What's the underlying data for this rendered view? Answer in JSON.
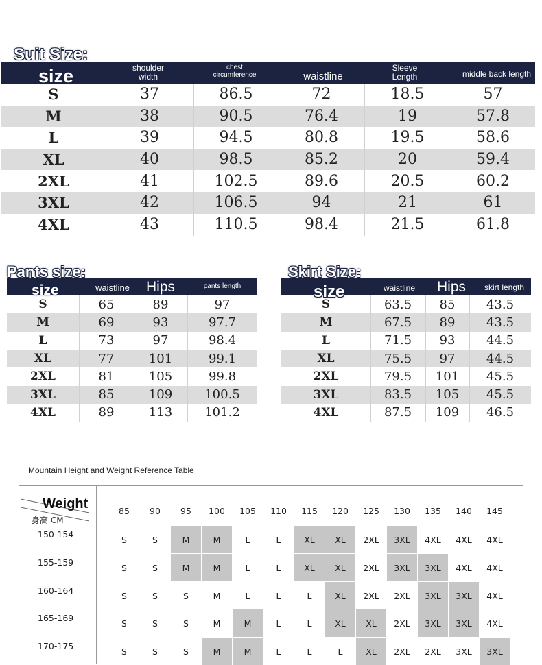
{
  "suit": {
    "title": "Suit Size:",
    "size_label": "size",
    "headers": [
      "shoulder width",
      "chest circumference",
      "waistline",
      "Sleeve Length",
      "middle back length"
    ],
    "rows": [
      [
        "S",
        "37",
        "86.5",
        "72",
        "18.5",
        "57"
      ],
      [
        "M",
        "38",
        "90.5",
        "76.4",
        "19",
        "57.8"
      ],
      [
        "L",
        "39",
        "94.5",
        "80.8",
        "19.5",
        "58.6"
      ],
      [
        "XL",
        "40",
        "98.5",
        "85.2",
        "20",
        "59.4"
      ],
      [
        "2XL",
        "41",
        "102.5",
        "89.6",
        "20.5",
        "60.2"
      ],
      [
        "3XL",
        "42",
        "106.5",
        "94",
        "21",
        "61"
      ],
      [
        "4XL",
        "43",
        "110.5",
        "98.4",
        "21.5",
        "61.8"
      ]
    ]
  },
  "pants": {
    "title": "Pants size:",
    "size_label": "size",
    "headers": [
      "waistline",
      "Hips",
      "pants length"
    ],
    "rows": [
      [
        "S",
        "65",
        "89",
        "97"
      ],
      [
        "M",
        "69",
        "93",
        "97.7"
      ],
      [
        "L",
        "73",
        "97",
        "98.4"
      ],
      [
        "XL",
        "77",
        "101",
        "99.1"
      ],
      [
        "2XL",
        "81",
        "105",
        "99.8"
      ],
      [
        "3XL",
        "85",
        "109",
        "100.5"
      ],
      [
        "4XL",
        "89",
        "113",
        "101.2"
      ]
    ]
  },
  "skirt": {
    "title": "Skirt Size:",
    "size_label": "size",
    "headers": [
      "waistline",
      "Hips",
      "skirt length"
    ],
    "rows": [
      [
        "S",
        "63.5",
        "85",
        "43.5"
      ],
      [
        "M",
        "67.5",
        "89",
        "43.5"
      ],
      [
        "L",
        "71.5",
        "93",
        "44.5"
      ],
      [
        "XL",
        "75.5",
        "97",
        "44.5"
      ],
      [
        "2XL",
        "79.5",
        "101",
        "45.5"
      ],
      [
        "3XL",
        "83.5",
        "105",
        "45.5"
      ],
      [
        "4XL",
        "87.5",
        "109",
        "46.5"
      ]
    ]
  },
  "reference": {
    "title": "Mountain Height and Weight Reference Table",
    "corner_weight": "Weight",
    "corner_height": "身高 CM",
    "weights": [
      "85",
      "90",
      "95",
      "100",
      "105",
      "110",
      "115",
      "120",
      "125",
      "130",
      "135",
      "140",
      "145"
    ],
    "heights": [
      "150-154",
      "155-159",
      "160-164",
      "165-169",
      "170-175"
    ],
    "cells": [
      [
        "S",
        "S",
        "M",
        "M",
        "L",
        "L",
        "XL",
        "XL",
        "2XL",
        "3XL",
        "4XL",
        "4XL",
        "4XL"
      ],
      [
        "S",
        "S",
        "M",
        "M",
        "L",
        "L",
        "XL",
        "XL",
        "2XL",
        "3XL",
        "3XL",
        "4XL",
        "4XL"
      ],
      [
        "S",
        "S",
        "S",
        "M",
        "L",
        "L",
        "L",
        "XL",
        "2XL",
        "2XL",
        "3XL",
        "3XL",
        "4XL"
      ],
      [
        "S",
        "S",
        "S",
        "M",
        "M",
        "L",
        "L",
        "XL",
        "XL",
        "2XL",
        "3XL",
        "3XL",
        "4XL"
      ],
      [
        "S",
        "S",
        "S",
        "M",
        "M",
        "L",
        "L",
        "L",
        "XL",
        "2XL",
        "2XL",
        "3XL",
        "3XL"
      ]
    ],
    "shaded": [
      [
        2,
        3,
        6,
        7,
        9
      ],
      [
        2,
        3,
        6,
        7,
        9,
        10
      ],
      [
        7,
        10,
        11
      ],
      [
        4,
        7,
        8,
        10,
        11
      ],
      [
        3,
        4,
        8,
        12
      ]
    ],
    "shade_color": "#c6c6c6"
  },
  "colors": {
    "header_band": "#1b2340",
    "alt_row": "#dcdcdc"
  }
}
